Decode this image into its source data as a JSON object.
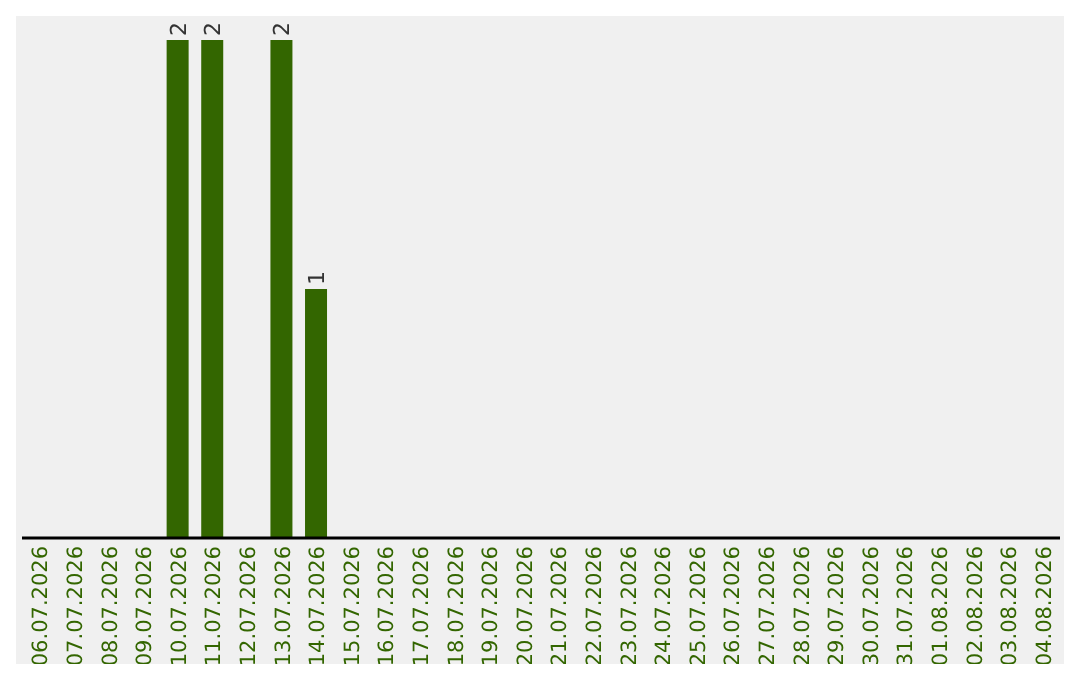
{
  "chart_data": {
    "type": "bar",
    "categories": [
      "06.07.2026",
      "07.07.2026",
      "08.07.2026",
      "09.07.2026",
      "10.07.2026",
      "11.07.2026",
      "12.07.2026",
      "13.07.2026",
      "14.07.2026",
      "15.07.2026",
      "16.07.2026",
      "17.07.2026",
      "18.07.2026",
      "19.07.2026",
      "20.07.2026",
      "21.07.2026",
      "22.07.2026",
      "23.07.2026",
      "24.07.2026",
      "25.07.2026",
      "26.07.2026",
      "27.07.2026",
      "28.07.2026",
      "29.07.2026",
      "30.07.2026",
      "31.07.2026",
      "01.08.2026",
      "02.08.2026",
      "03.08.2026",
      "04.08.2026"
    ],
    "values": [
      null,
      null,
      null,
      null,
      2,
      2,
      null,
      2,
      1,
      null,
      null,
      null,
      null,
      null,
      null,
      null,
      null,
      null,
      null,
      null,
      null,
      null,
      null,
      null,
      null,
      null,
      null,
      null,
      null,
      null
    ],
    "data_labels": true,
    "color": "#336600",
    "tick_labels": "x",
    "grid": false,
    "legend": false
  }
}
